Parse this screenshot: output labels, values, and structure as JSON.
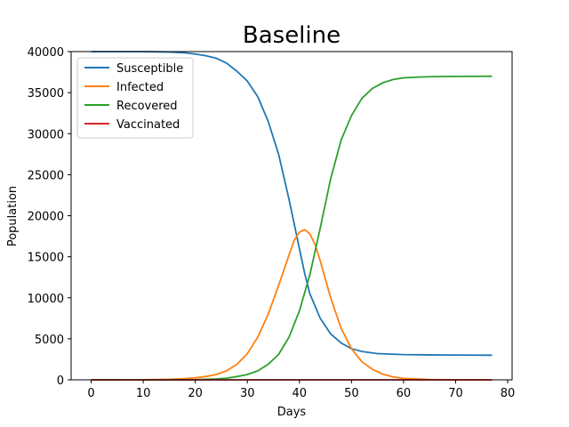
{
  "chart_data": {
    "type": "line",
    "title": "Baseline",
    "xlabel": "Days",
    "ylabel": "Population",
    "xlim": [
      -3.85,
      80.85
    ],
    "ylim": [
      0,
      40000
    ],
    "xticks": [
      0,
      10,
      20,
      30,
      40,
      50,
      60,
      70,
      80
    ],
    "yticks": [
      0,
      5000,
      10000,
      15000,
      20000,
      25000,
      30000,
      35000,
      40000
    ],
    "grid": false,
    "legend_position": "top-left",
    "series": [
      {
        "name": "Susceptible",
        "color": "#1f77b4",
        "points": [
          [
            0,
            40000
          ],
          [
            5,
            40000
          ],
          [
            10,
            40000
          ],
          [
            15,
            39950
          ],
          [
            18,
            39850
          ],
          [
            20,
            39700
          ],
          [
            22,
            39500
          ],
          [
            24,
            39200
          ],
          [
            26,
            38600
          ],
          [
            28,
            37600
          ],
          [
            30,
            36400
          ],
          [
            32,
            34500
          ],
          [
            34,
            31500
          ],
          [
            36,
            27500
          ],
          [
            38,
            22000
          ],
          [
            40,
            16000
          ],
          [
            41,
            13000
          ],
          [
            42,
            10500
          ],
          [
            44,
            7500
          ],
          [
            46,
            5600
          ],
          [
            48,
            4500
          ],
          [
            50,
            3800
          ],
          [
            52,
            3450
          ],
          [
            55,
            3200
          ],
          [
            60,
            3080
          ],
          [
            65,
            3040
          ],
          [
            70,
            3020
          ],
          [
            77,
            3000
          ]
        ]
      },
      {
        "name": "Infected",
        "color": "#ff7f0e",
        "points": [
          [
            0,
            0
          ],
          [
            10,
            10
          ],
          [
            15,
            60
          ],
          [
            18,
            150
          ],
          [
            20,
            250
          ],
          [
            22,
            400
          ],
          [
            24,
            650
          ],
          [
            26,
            1100
          ],
          [
            28,
            1900
          ],
          [
            30,
            3200
          ],
          [
            32,
            5200
          ],
          [
            34,
            8000
          ],
          [
            36,
            11500
          ],
          [
            38,
            15200
          ],
          [
            39,
            17000
          ],
          [
            40,
            18000
          ],
          [
            41,
            18300
          ],
          [
            42,
            17800
          ],
          [
            43,
            16500
          ],
          [
            44,
            14500
          ],
          [
            46,
            10000
          ],
          [
            48,
            6300
          ],
          [
            50,
            3800
          ],
          [
            52,
            2200
          ],
          [
            54,
            1300
          ],
          [
            56,
            700
          ],
          [
            58,
            350
          ],
          [
            60,
            170
          ],
          [
            65,
            40
          ],
          [
            70,
            10
          ],
          [
            77,
            0
          ]
        ]
      },
      {
        "name": "Recovered",
        "color": "#2ca02c",
        "points": [
          [
            0,
            0
          ],
          [
            15,
            0
          ],
          [
            20,
            20
          ],
          [
            24,
            100
          ],
          [
            26,
            200
          ],
          [
            28,
            400
          ],
          [
            30,
            650
          ],
          [
            32,
            1100
          ],
          [
            34,
            1900
          ],
          [
            36,
            3100
          ],
          [
            38,
            5200
          ],
          [
            40,
            8400
          ],
          [
            42,
            12800
          ],
          [
            44,
            18500
          ],
          [
            46,
            24500
          ],
          [
            48,
            29200
          ],
          [
            50,
            32200
          ],
          [
            52,
            34300
          ],
          [
            54,
            35500
          ],
          [
            56,
            36200
          ],
          [
            58,
            36600
          ],
          [
            60,
            36800
          ],
          [
            63,
            36900
          ],
          [
            66,
            36950
          ],
          [
            70,
            36980
          ],
          [
            77,
            37000
          ]
        ]
      },
      {
        "name": "Vaccinated",
        "color": "#d62728",
        "points": [
          [
            0,
            0
          ],
          [
            77,
            0
          ]
        ]
      }
    ]
  }
}
